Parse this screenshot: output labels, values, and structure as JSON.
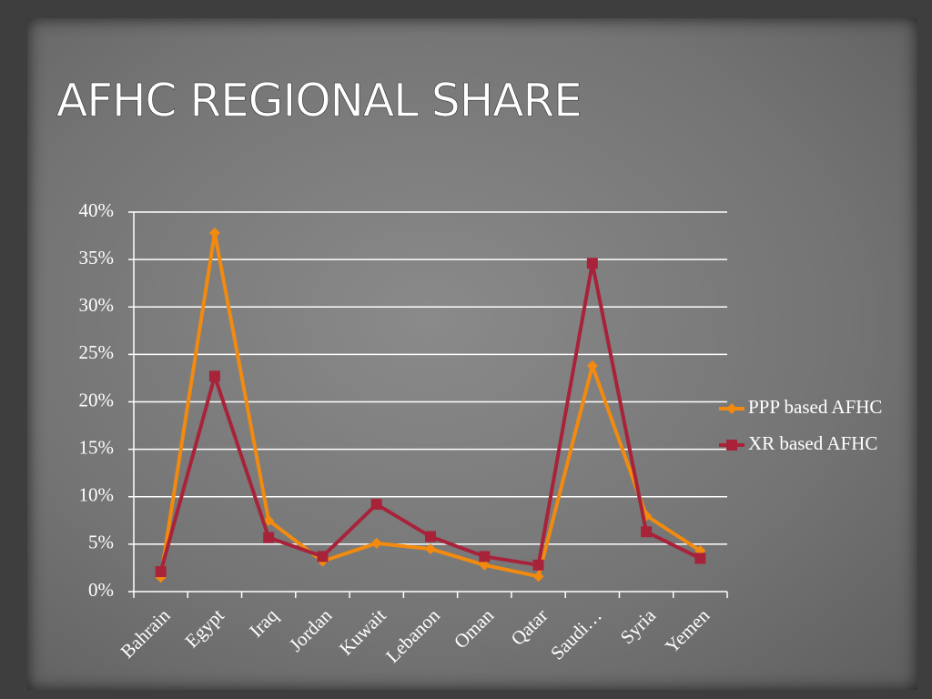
{
  "chart_data": {
    "type": "line",
    "title": "AFHC REGIONAL SHARE",
    "categories": [
      "Bahrain",
      "Egypt",
      "Iraq",
      "Jordan",
      "Kuwait",
      "Lebanon",
      "Oman",
      "Qatar",
      "Saudi…",
      "Syria",
      "Yemen"
    ],
    "series": [
      {
        "name": "PPP based AFHC",
        "color": "#f28a0f",
        "marker": "diamond",
        "values": [
          1.5,
          37.8,
          7.5,
          3.2,
          5.1,
          4.5,
          2.8,
          1.6,
          23.8,
          8.0,
          4.3
        ]
      },
      {
        "name": "XR based AFHC",
        "color": "#a8233a",
        "marker": "square",
        "values": [
          2.1,
          22.7,
          5.7,
          3.7,
          9.2,
          5.8,
          3.7,
          2.8,
          34.6,
          6.3,
          3.5
        ]
      }
    ],
    "ylim": [
      0,
      40
    ],
    "yticks": [
      {
        "value": 0,
        "label": "0%"
      },
      {
        "value": 5,
        "label": "5%"
      },
      {
        "value": 10,
        "label": "10%"
      },
      {
        "value": 15,
        "label": "15%"
      },
      {
        "value": 20,
        "label": "20%"
      },
      {
        "value": 25,
        "label": "25%"
      },
      {
        "value": 30,
        "label": "30%"
      },
      {
        "value": 35,
        "label": "35%"
      },
      {
        "value": 40,
        "label": "40%"
      }
    ],
    "grid": true,
    "legend": "right"
  }
}
